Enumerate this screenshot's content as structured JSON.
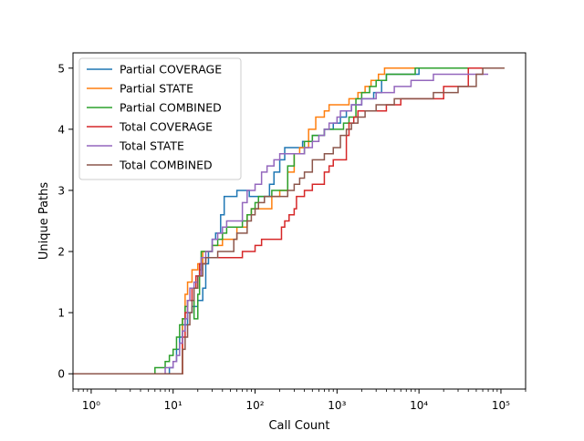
{
  "chart_data": {
    "type": "line",
    "title": "",
    "xlabel": "Call Count",
    "ylabel": "Unique Paths",
    "xscale": "log",
    "xlim": [
      0.6,
      200000
    ],
    "ylim": [
      -0.25,
      5.25
    ],
    "xticks": [
      {
        "value": 1,
        "label": "10⁰"
      },
      {
        "value": 10,
        "label": "10¹"
      },
      {
        "value": 100,
        "label": "10²"
      },
      {
        "value": 1000,
        "label": "10³"
      },
      {
        "value": 10000,
        "label": "10⁴"
      },
      {
        "value": 100000,
        "label": "10⁵"
      }
    ],
    "yticks": [
      0,
      1,
      2,
      3,
      4,
      5
    ],
    "grid": false,
    "legend_position": "top-left",
    "series": [
      {
        "name": "Partial COVERAGE",
        "color": "#1f77b4",
        "points": [
          [
            0.5,
            0
          ],
          [
            8,
            0
          ],
          [
            9,
            0.1
          ],
          [
            10,
            0.2
          ],
          [
            11,
            0.4
          ],
          [
            12,
            0.6
          ],
          [
            13,
            0.8
          ],
          [
            15,
            1.0
          ],
          [
            17,
            1.1
          ],
          [
            20,
            1.2
          ],
          [
            23,
            1.4
          ],
          [
            25,
            1.8
          ],
          [
            27,
            2.0
          ],
          [
            30,
            2.2
          ],
          [
            33,
            2.3
          ],
          [
            38,
            2.6
          ],
          [
            42,
            2.9
          ],
          [
            55,
            2.9
          ],
          [
            60,
            3.0
          ],
          [
            75,
            3.0
          ],
          [
            85,
            2.9
          ],
          [
            110,
            2.9
          ],
          [
            150,
            3.1
          ],
          [
            170,
            3.3
          ],
          [
            200,
            3.5
          ],
          [
            230,
            3.7
          ],
          [
            300,
            3.7
          ],
          [
            380,
            3.8
          ],
          [
            500,
            3.9
          ],
          [
            700,
            4.0
          ],
          [
            900,
            4.1
          ],
          [
            1100,
            4.2
          ],
          [
            1300,
            4.3
          ],
          [
            1500,
            4.4
          ],
          [
            2000,
            4.5
          ],
          [
            2800,
            4.6
          ],
          [
            3500,
            4.8
          ],
          [
            4000,
            4.9
          ],
          [
            5000,
            4.9
          ],
          [
            10000,
            5.0
          ],
          [
            110000,
            5.0
          ]
        ]
      },
      {
        "name": "Partial STATE",
        "color": "#ff7f0e",
        "points": [
          [
            0.5,
            0
          ],
          [
            12,
            0
          ],
          [
            13,
            0.9
          ],
          [
            14,
            1.3
          ],
          [
            15,
            1.5
          ],
          [
            17,
            1.7
          ],
          [
            20,
            1.8
          ],
          [
            23,
            2.0
          ],
          [
            30,
            2.1
          ],
          [
            40,
            2.2
          ],
          [
            60,
            2.4
          ],
          [
            80,
            2.6
          ],
          [
            90,
            2.7
          ],
          [
            130,
            2.7
          ],
          [
            160,
            2.9
          ],
          [
            200,
            3.0
          ],
          [
            250,
            3.3
          ],
          [
            300,
            3.6
          ],
          [
            350,
            3.7
          ],
          [
            450,
            4.0
          ],
          [
            550,
            4.2
          ],
          [
            700,
            4.3
          ],
          [
            800,
            4.4
          ],
          [
            1100,
            4.4
          ],
          [
            1400,
            4.5
          ],
          [
            1800,
            4.6
          ],
          [
            2200,
            4.7
          ],
          [
            2600,
            4.8
          ],
          [
            3200,
            4.9
          ],
          [
            3800,
            5.0
          ],
          [
            110000,
            5.0
          ]
        ]
      },
      {
        "name": "Partial COMBINED",
        "color": "#2ca02c",
        "points": [
          [
            0.5,
            0
          ],
          [
            5,
            0
          ],
          [
            6,
            0.1
          ],
          [
            7,
            0.1
          ],
          [
            8,
            0.2
          ],
          [
            9,
            0.3
          ],
          [
            10,
            0.4
          ],
          [
            11,
            0.6
          ],
          [
            12,
            0.8
          ],
          [
            13,
            0.9
          ],
          [
            14,
            1.1
          ],
          [
            15,
            1.2
          ],
          [
            18,
            0.9
          ],
          [
            19,
            0.9
          ],
          [
            20,
            1.3
          ],
          [
            21,
            1.7
          ],
          [
            22,
            2.0
          ],
          [
            30,
            2.1
          ],
          [
            35,
            2.2
          ],
          [
            40,
            2.3
          ],
          [
            45,
            2.4
          ],
          [
            70,
            2.5
          ],
          [
            80,
            2.6
          ],
          [
            90,
            2.7
          ],
          [
            100,
            2.8
          ],
          [
            110,
            2.9
          ],
          [
            150,
            2.9
          ],
          [
            160,
            3.0
          ],
          [
            230,
            3.0
          ],
          [
            250,
            3.4
          ],
          [
            300,
            3.6
          ],
          [
            400,
            3.8
          ],
          [
            500,
            3.9
          ],
          [
            700,
            4.0
          ],
          [
            1000,
            4.0
          ],
          [
            1200,
            4.1
          ],
          [
            1400,
            4.2
          ],
          [
            1700,
            4.5
          ],
          [
            2000,
            4.6
          ],
          [
            2500,
            4.7
          ],
          [
            3000,
            4.8
          ],
          [
            4000,
            4.9
          ],
          [
            9000,
            5.0
          ],
          [
            110000,
            5.0
          ]
        ]
      },
      {
        "name": "Total COVERAGE",
        "color": "#d62728",
        "points": [
          [
            0.5,
            0
          ],
          [
            12,
            0
          ],
          [
            13,
            0.6
          ],
          [
            14,
            1.0
          ],
          [
            15,
            1.2
          ],
          [
            17,
            1.4
          ],
          [
            19,
            1.6
          ],
          [
            21,
            1.8
          ],
          [
            25,
            1.9
          ],
          [
            60,
            1.9
          ],
          [
            70,
            2.0
          ],
          [
            100,
            2.1
          ],
          [
            120,
            2.2
          ],
          [
            200,
            2.2
          ],
          [
            210,
            2.4
          ],
          [
            230,
            2.5
          ],
          [
            260,
            2.6
          ],
          [
            300,
            2.7
          ],
          [
            320,
            2.9
          ],
          [
            400,
            3.0
          ],
          [
            500,
            3.1
          ],
          [
            700,
            3.3
          ],
          [
            800,
            3.4
          ],
          [
            900,
            3.5
          ],
          [
            1200,
            3.5
          ],
          [
            1300,
            3.9
          ],
          [
            1400,
            4.1
          ],
          [
            1600,
            4.2
          ],
          [
            1800,
            4.3
          ],
          [
            2500,
            4.3
          ],
          [
            4000,
            4.4
          ],
          [
            6000,
            4.5
          ],
          [
            10000,
            4.5
          ],
          [
            20000,
            4.7
          ],
          [
            40000,
            5.0
          ],
          [
            110000,
            5.0
          ]
        ]
      },
      {
        "name": "Total STATE",
        "color": "#9467bd",
        "points": [
          [
            0.5,
            0
          ],
          [
            7,
            0
          ],
          [
            8,
            0.1
          ],
          [
            9,
            0.1
          ],
          [
            10,
            0.2
          ],
          [
            11,
            0.3
          ],
          [
            12,
            0.5
          ],
          [
            13,
            0.7
          ],
          [
            14,
            0.9
          ],
          [
            15,
            1.2
          ],
          [
            16,
            1.4
          ],
          [
            18,
            1.5
          ],
          [
            20,
            1.6
          ],
          [
            22,
            1.9
          ],
          [
            25,
            2.0
          ],
          [
            30,
            2.2
          ],
          [
            35,
            2.3
          ],
          [
            40,
            2.4
          ],
          [
            45,
            2.5
          ],
          [
            60,
            2.5
          ],
          [
            70,
            2.8
          ],
          [
            80,
            3.0
          ],
          [
            100,
            3.1
          ],
          [
            120,
            3.3
          ],
          [
            140,
            3.4
          ],
          [
            170,
            3.5
          ],
          [
            200,
            3.6
          ],
          [
            300,
            3.6
          ],
          [
            400,
            3.7
          ],
          [
            500,
            3.8
          ],
          [
            600,
            3.9
          ],
          [
            700,
            4.0
          ],
          [
            800,
            4.1
          ],
          [
            1000,
            4.2
          ],
          [
            1100,
            4.3
          ],
          [
            1500,
            4.4
          ],
          [
            2000,
            4.5
          ],
          [
            3000,
            4.6
          ],
          [
            5000,
            4.7
          ],
          [
            8000,
            4.8
          ],
          [
            15000,
            4.9
          ],
          [
            70000,
            4.9
          ]
        ]
      },
      {
        "name": "Total COMBINED",
        "color": "#8c564b",
        "points": [
          [
            0.5,
            0
          ],
          [
            12,
            0
          ],
          [
            13,
            0.4
          ],
          [
            14,
            0.6
          ],
          [
            15,
            0.8
          ],
          [
            16,
            1.0
          ],
          [
            17,
            1.2
          ],
          [
            18,
            1.4
          ],
          [
            20,
            1.6
          ],
          [
            23,
            1.8
          ],
          [
            25,
            1.9
          ],
          [
            35,
            2.0
          ],
          [
            50,
            2.0
          ],
          [
            55,
            2.2
          ],
          [
            60,
            2.3
          ],
          [
            80,
            2.5
          ],
          [
            90,
            2.6
          ],
          [
            100,
            2.7
          ],
          [
            110,
            2.8
          ],
          [
            130,
            2.9
          ],
          [
            200,
            2.9
          ],
          [
            250,
            3.0
          ],
          [
            300,
            3.1
          ],
          [
            350,
            3.2
          ],
          [
            400,
            3.3
          ],
          [
            500,
            3.5
          ],
          [
            700,
            3.6
          ],
          [
            900,
            3.7
          ],
          [
            1100,
            3.9
          ],
          [
            1300,
            4.0
          ],
          [
            1500,
            4.1
          ],
          [
            1800,
            4.2
          ],
          [
            2200,
            4.3
          ],
          [
            3000,
            4.4
          ],
          [
            5000,
            4.5
          ],
          [
            7000,
            4.5
          ],
          [
            15000,
            4.6
          ],
          [
            30000,
            4.7
          ],
          [
            50000,
            4.9
          ],
          [
            60000,
            5.0
          ],
          [
            110000,
            5.0
          ]
        ]
      }
    ]
  }
}
